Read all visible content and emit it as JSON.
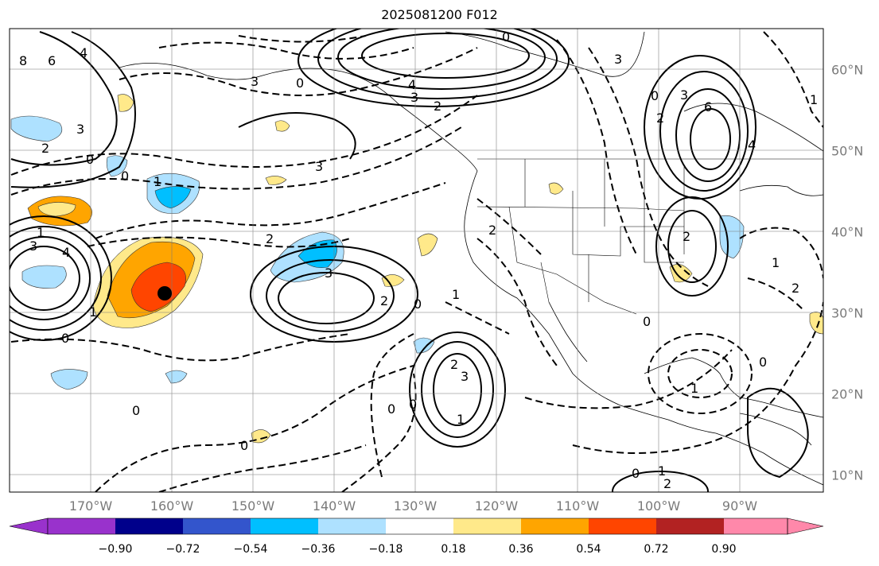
{
  "title": "2025081200 F012",
  "lon_labels": [
    "170°W",
    "160°W",
    "150°W",
    "140°W",
    "130°W",
    "120°W",
    "110°W",
    "100°W",
    "90°W"
  ],
  "lat_labels": [
    "60°N",
    "50°N",
    "40°N",
    "30°N",
    "20°N",
    "10°N"
  ],
  "colorbar": {
    "colors": [
      "#9932cc",
      "#00008b",
      "#3355cc",
      "#00bfff",
      "#aee1ff",
      "#ffffff",
      "#ffe98a",
      "#ffa500",
      "#ff4500",
      "#b22222",
      "#ff88aa"
    ],
    "tick_labels": [
      "−0.90",
      "−0.72",
      "−0.54",
      "−0.36",
      "−0.18",
      "0.18",
      "0.36",
      "0.54",
      "0.72",
      "0.90"
    ]
  },
  "contour_labels": [
    "8",
    "6",
    "4",
    "3",
    "2",
    "1",
    "0",
    "-1",
    "-2",
    "-3",
    "-4",
    "-6"
  ],
  "marker": "storm-center-dot"
}
